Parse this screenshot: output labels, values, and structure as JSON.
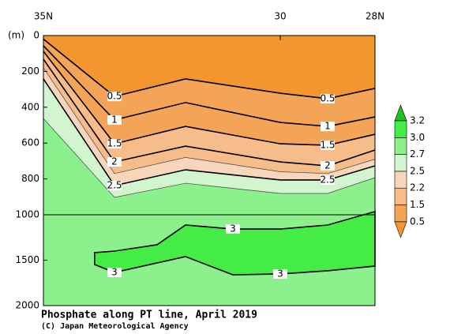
{
  "chart_data": {
    "type": "contour",
    "title": "Phosphate along PT line, April 2019",
    "credit": "(C) Japan Meteorological Agency",
    "ylabel": "(m)",
    "xlim": [
      35,
      28
    ],
    "xticks": [
      {
        "value": 35,
        "label": "35N"
      },
      30,
      {
        "value": 28,
        "label": "28N"
      }
    ],
    "ylim": [
      0,
      2000
    ],
    "ybreak": 1000,
    "yticks": [
      0,
      200,
      400,
      600,
      800,
      1000,
      1500,
      2000
    ],
    "colorbar": {
      "levels": [
        0.5,
        1.5,
        2.2,
        2.5,
        2.7,
        {
          "value": 3,
          "label": "3.0"
        },
        3.2
      ],
      "colors": [
        "#f39630",
        "#f4a456",
        "#f6bc8a",
        "#f8d6bc",
        "#d2f5cf",
        "#8cf08c",
        "#46ec46",
        "#22c022"
      ]
    },
    "contours": [
      {
        "level": 0.5,
        "labeled": true,
        "x": [
          35,
          33.5,
          32,
          30,
          29,
          28
        ],
        "depth": [
          20,
          340,
          242,
          322,
          352,
          295
        ]
      },
      {
        "level": 1,
        "labeled": true,
        "x": [
          35,
          33.5,
          32,
          30,
          29,
          28
        ],
        "depth": [
          57,
          471,
          374,
          485,
          507,
          454
        ]
      },
      {
        "level": 1.5,
        "labeled": true,
        "x": [
          35,
          33.5,
          32,
          30,
          29,
          28
        ],
        "depth": [
          88,
          604,
          507,
          604,
          612,
          551
        ]
      },
      {
        "level": 2,
        "labeled": true,
        "x": [
          35,
          33.5,
          32,
          30,
          29,
          28
        ],
        "depth": [
          132,
          705,
          617,
          705,
          727,
          639
        ]
      },
      {
        "level": 2.2,
        "labeled": false,
        "x": [
          35,
          33.5,
          32,
          30,
          29,
          28
        ],
        "depth": [
          180,
          770,
          680,
          760,
          770,
          690
        ]
      },
      {
        "level": 2.5,
        "labeled": true,
        "x": [
          35,
          33.5,
          32,
          30,
          29,
          28
        ],
        "depth": [
          242,
          837,
          749,
          806,
          806,
          727
        ]
      },
      {
        "level": 2.7,
        "labeled": false,
        "x": [
          35,
          33.5,
          32,
          30,
          29,
          28
        ],
        "depth": [
          463,
          903,
          824,
          881,
          881,
          793
        ]
      },
      {
        "level": 3,
        "labeled": true,
        "closed": true,
        "x": [
          33.92,
          33.5,
          32.6,
          32,
          31,
          30,
          29,
          28,
          28,
          29,
          30,
          31,
          32,
          33.5,
          33.92
        ],
        "depth": [
          1417,
          1400,
          1330,
          1113,
          1157,
          1157,
          1113,
          982,
          1565,
          1617,
          1652,
          1661,
          1461,
          1635,
          1548
        ]
      }
    ]
  }
}
